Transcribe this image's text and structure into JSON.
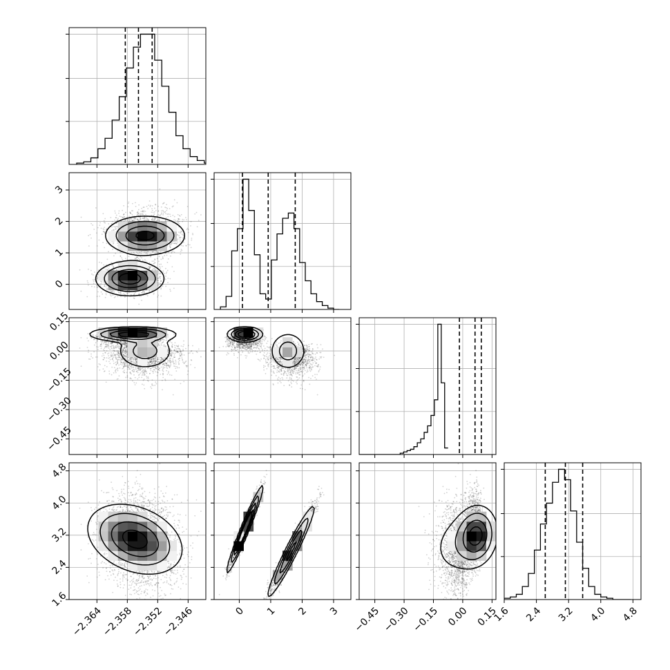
{
  "chart_data": {
    "type": "corner",
    "params": [
      {
        "id": "p0",
        "lim": [
          -2.3695,
          -2.3425
        ],
        "ticks": [
          -2.364,
          -2.358,
          -2.352,
          -2.346
        ],
        "tick_labels": [
          "−2.364",
          "−2.358",
          "−2.352",
          "−2.346"
        ]
      },
      {
        "id": "p1",
        "lim": [
          -0.8,
          3.55
        ],
        "ticks": [
          0,
          1,
          2,
          3
        ],
        "tick_labels": [
          "0",
          "1",
          "2",
          "3"
        ]
      },
      {
        "id": "p2",
        "lim": [
          -0.53,
          0.17
        ],
        "ticks": [
          -0.45,
          -0.3,
          -0.15,
          0.0,
          0.15
        ],
        "tick_labels": [
          "−0.45",
          "−0.30",
          "−0.15",
          "0.00",
          "0.15"
        ]
      },
      {
        "id": "p3",
        "lim": [
          1.6,
          5.0
        ],
        "ticks": [
          1.6,
          2.4,
          3.2,
          4.0,
          4.8
        ],
        "tick_labels": [
          "1.6",
          "2.4",
          "3.2",
          "4.0",
          "4.8"
        ]
      }
    ],
    "histograms": [
      {
        "param": "p0",
        "edges_start": -2.368,
        "bin_width": 0.0014,
        "counts": [
          1,
          2,
          5,
          12,
          20,
          34,
          52,
          74,
          90,
          100,
          100,
          80,
          60,
          40,
          22,
          12,
          6,
          3,
          1
        ],
        "quantiles": [
          -2.3584,
          -2.3558,
          -2.3531
        ]
      },
      {
        "param": "p1",
        "edges_start": -0.6,
        "bin_width": 0.18,
        "counts": [
          2,
          10,
          45,
          62,
          100,
          76,
          42,
          12,
          8,
          38,
          58,
          70,
          74,
          62,
          36,
          22,
          12,
          6,
          3,
          1,
          0
        ],
        "quantiles": [
          0.1,
          0.92,
          1.78
        ]
      },
      {
        "param": "p2",
        "edges_start": -0.53,
        "bin_width": 0.0175,
        "counts": [
          0,
          0,
          0,
          0,
          0,
          0,
          0,
          0,
          0,
          0,
          0,
          0,
          1,
          2,
          3,
          4,
          6,
          9,
          12,
          17,
          22,
          30,
          42,
          100,
          55,
          5
        ],
        "quantiles": [
          -0.017,
          0.063,
          0.095
        ]
      },
      {
        "param": "p3",
        "edges_start": 1.6,
        "bin_width": 0.15,
        "counts": [
          1,
          2,
          4,
          10,
          20,
          38,
          58,
          74,
          90,
          100,
          92,
          68,
          44,
          24,
          10,
          4,
          2,
          1,
          0,
          0,
          0
        ],
        "quantiles": [
          2.62,
          3.12,
          3.55
        ]
      }
    ],
    "contour_levels": [
      "0.5 sigma",
      "1 sigma",
      "1.5 sigma",
      "2 sigma"
    ],
    "grid": true
  }
}
